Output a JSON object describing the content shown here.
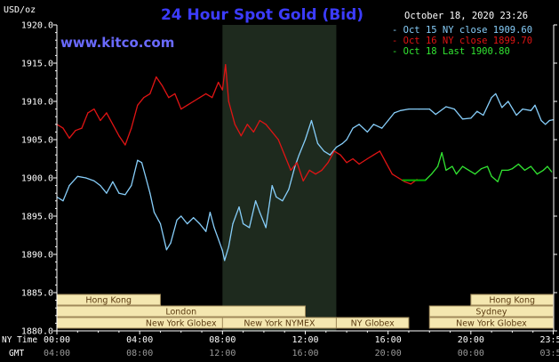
{
  "header": {
    "y_unit": "USD/oz",
    "title": "24 Hour Spot Gold (Bid)",
    "timestamp": "October 18, 2020 23:26",
    "watermark": "www.kitco.com"
  },
  "colors": {
    "background": "#000000",
    "axis": "#ffffff",
    "title": "#3c3cff",
    "watermark": "#6a6aff",
    "night_shade": "#1e2a1e",
    "oct15": "#87cefa",
    "oct16": "#e01414",
    "oct18": "#32e632",
    "oct18_flat": "#00b000",
    "session_bar": "#f4e7b0",
    "session_border": "#a08a5a",
    "session_text": "#5a3a10"
  },
  "sessions": [
    {
      "name": "Hong Kong",
      "start": "00:00",
      "end": "05:00",
      "row": 1
    },
    {
      "name": "London",
      "start": "00:00",
      "end": "12:00",
      "row": 2
    },
    {
      "name": "New York Globex",
      "start": "00:00",
      "end": "12:00",
      "row": 3
    },
    {
      "name": "New York NYMEX",
      "start": "08:00",
      "end": "13:30",
      "row": 3
    },
    {
      "name": "NY Globex",
      "start": "13:30",
      "end": "17:00",
      "row": 3
    },
    {
      "name": "Hong Kong",
      "start": "20:00",
      "end": "23:59",
      "row": 1
    },
    {
      "name": "Sydney",
      "start": "18:00",
      "end": "23:59",
      "row": 2
    },
    {
      "name": "New York Globex",
      "start": "18:00",
      "end": "23:59",
      "row": 3
    }
  ],
  "chart_data": {
    "type": "line",
    "title": "24 Hour Spot Gold (Bid)",
    "ylabel": "USD/oz",
    "ylim": [
      1880.0,
      1920.0
    ],
    "yticks": [
      "1920.0",
      "1915.0",
      "1910.0",
      "1905.0",
      "1900.0",
      "1895.0",
      "1890.0",
      "1885.0",
      "1880.0"
    ],
    "xlim_hours": [
      0,
      24
    ],
    "x_row_labels": [
      "NY Time",
      "GMT"
    ],
    "xticks_ny": [
      "00:00",
      "04:00",
      "08:00",
      "12:00",
      "16:00",
      "20:00",
      "23:59"
    ],
    "xticks_gmt": [
      "04:00",
      "08:00",
      "12:00",
      "16:00",
      "20:00",
      "00:00",
      "03:59"
    ],
    "shaded_region_hours": [
      8,
      13.5
    ],
    "grid": false,
    "legend_position": "top-right",
    "series": [
      {
        "name": "Oct 15 NY close 1909.60",
        "color_key": "oct15",
        "points": [
          [
            0,
            1897.5
          ],
          [
            0.3,
            1897.0
          ],
          [
            0.6,
            1899.0
          ],
          [
            1.0,
            1900.2
          ],
          [
            1.4,
            1900.0
          ],
          [
            1.8,
            1899.6
          ],
          [
            2.1,
            1899.0
          ],
          [
            2.4,
            1898.0
          ],
          [
            2.7,
            1899.5
          ],
          [
            3.0,
            1898.0
          ],
          [
            3.3,
            1897.8
          ],
          [
            3.6,
            1899.0
          ],
          [
            3.9,
            1902.3
          ],
          [
            4.1,
            1902.0
          ],
          [
            4.3,
            1900.0
          ],
          [
            4.5,
            1898.0
          ],
          [
            4.7,
            1895.5
          ],
          [
            5.0,
            1894.0
          ],
          [
            5.3,
            1890.6
          ],
          [
            5.5,
            1891.5
          ],
          [
            5.8,
            1894.5
          ],
          [
            6.0,
            1895.0
          ],
          [
            6.3,
            1894.0
          ],
          [
            6.6,
            1894.8
          ],
          [
            6.9,
            1894.0
          ],
          [
            7.2,
            1893.0
          ],
          [
            7.4,
            1895.5
          ],
          [
            7.6,
            1893.5
          ],
          [
            7.8,
            1892.0
          ],
          [
            8.0,
            1890.5
          ],
          [
            8.1,
            1889.2
          ],
          [
            8.3,
            1891.0
          ],
          [
            8.5,
            1894.0
          ],
          [
            8.8,
            1896.2
          ],
          [
            9.0,
            1894.0
          ],
          [
            9.3,
            1893.5
          ],
          [
            9.6,
            1897.0
          ],
          [
            9.8,
            1895.5
          ],
          [
            10.1,
            1893.5
          ],
          [
            10.4,
            1899.0
          ],
          [
            10.6,
            1897.5
          ],
          [
            10.9,
            1897.0
          ],
          [
            11.2,
            1898.5
          ],
          [
            11.5,
            1901.5
          ],
          [
            11.7,
            1903.0
          ],
          [
            12.0,
            1905.0
          ],
          [
            12.3,
            1907.5
          ],
          [
            12.6,
            1904.5
          ],
          [
            12.9,
            1903.5
          ],
          [
            13.2,
            1903.0
          ],
          [
            13.5,
            1904.0
          ],
          [
            13.8,
            1904.5
          ],
          [
            14.0,
            1905.0
          ],
          [
            14.3,
            1906.5
          ],
          [
            14.6,
            1907.0
          ],
          [
            15.0,
            1906.0
          ],
          [
            15.3,
            1907.0
          ],
          [
            15.7,
            1906.5
          ],
          [
            16.0,
            1907.5
          ],
          [
            16.3,
            1908.5
          ],
          [
            16.6,
            1908.8
          ],
          [
            17.0,
            1909.0
          ],
          [
            17.5,
            1909.0
          ],
          [
            18.0,
            1909.0
          ],
          [
            18.3,
            1908.3
          ],
          [
            18.8,
            1909.3
          ],
          [
            19.2,
            1909.0
          ],
          [
            19.6,
            1907.7
          ],
          [
            20.0,
            1907.8
          ],
          [
            20.3,
            1908.7
          ],
          [
            20.6,
            1908.2
          ],
          [
            21.0,
            1910.5
          ],
          [
            21.2,
            1911.0
          ],
          [
            21.5,
            1909.2
          ],
          [
            21.8,
            1910.0
          ],
          [
            22.2,
            1908.2
          ],
          [
            22.5,
            1909.0
          ],
          [
            22.9,
            1908.8
          ],
          [
            23.1,
            1909.5
          ],
          [
            23.4,
            1907.5
          ],
          [
            23.6,
            1907.0
          ],
          [
            23.8,
            1907.5
          ],
          [
            23.98,
            1907.6
          ]
        ]
      },
      {
        "name": "Oct 16 NY close 1899.70",
        "color_key": "oct16",
        "points": [
          [
            0,
            1907.0
          ],
          [
            0.3,
            1906.5
          ],
          [
            0.6,
            1905.2
          ],
          [
            0.9,
            1906.2
          ],
          [
            1.2,
            1906.5
          ],
          [
            1.5,
            1908.5
          ],
          [
            1.8,
            1909.0
          ],
          [
            2.1,
            1907.5
          ],
          [
            2.4,
            1908.5
          ],
          [
            2.7,
            1907.0
          ],
          [
            3.0,
            1905.5
          ],
          [
            3.3,
            1904.3
          ],
          [
            3.6,
            1906.5
          ],
          [
            3.9,
            1909.5
          ],
          [
            4.2,
            1910.5
          ],
          [
            4.5,
            1911.0
          ],
          [
            4.8,
            1913.2
          ],
          [
            5.1,
            1912.0
          ],
          [
            5.4,
            1910.5
          ],
          [
            5.7,
            1911.0
          ],
          [
            6.0,
            1909.0
          ],
          [
            6.3,
            1909.5
          ],
          [
            6.6,
            1910.0
          ],
          [
            6.9,
            1910.5
          ],
          [
            7.2,
            1911.0
          ],
          [
            7.5,
            1910.5
          ],
          [
            7.8,
            1912.5
          ],
          [
            8.0,
            1911.5
          ],
          [
            8.15,
            1914.8
          ],
          [
            8.3,
            1910.0
          ],
          [
            8.6,
            1907.0
          ],
          [
            8.9,
            1905.5
          ],
          [
            9.2,
            1907.0
          ],
          [
            9.5,
            1906.0
          ],
          [
            9.8,
            1907.5
          ],
          [
            10.1,
            1907.0
          ],
          [
            10.4,
            1906.0
          ],
          [
            10.7,
            1905.0
          ],
          [
            11.0,
            1903.0
          ],
          [
            11.3,
            1901.0
          ],
          [
            11.6,
            1902.0
          ],
          [
            11.9,
            1899.6
          ],
          [
            12.2,
            1901.0
          ],
          [
            12.5,
            1900.5
          ],
          [
            12.8,
            1901.0
          ],
          [
            13.1,
            1902.0
          ],
          [
            13.4,
            1903.5
          ],
          [
            13.7,
            1903.0
          ],
          [
            14.0,
            1902.0
          ],
          [
            14.3,
            1902.5
          ],
          [
            14.6,
            1901.8
          ],
          [
            15.0,
            1902.5
          ],
          [
            15.3,
            1903.0
          ],
          [
            15.6,
            1903.5
          ],
          [
            15.9,
            1902.0
          ],
          [
            16.2,
            1900.5
          ],
          [
            16.5,
            1900.0
          ],
          [
            16.8,
            1899.5
          ],
          [
            17.1,
            1899.2
          ],
          [
            17.4,
            1899.8
          ]
        ]
      },
      {
        "name": "Oct 18 Last 1900.80",
        "color_key": "oct18",
        "points": [
          [
            16.7,
            1899.7
          ],
          [
            17.8,
            1899.7
          ],
          [
            18.1,
            1900.5
          ],
          [
            18.4,
            1901.5
          ],
          [
            18.6,
            1903.3
          ],
          [
            18.8,
            1901.0
          ],
          [
            19.1,
            1901.5
          ],
          [
            19.3,
            1900.5
          ],
          [
            19.6,
            1901.5
          ],
          [
            19.9,
            1901.0
          ],
          [
            20.2,
            1900.5
          ],
          [
            20.5,
            1901.2
          ],
          [
            20.8,
            1901.5
          ],
          [
            21.0,
            1900.2
          ],
          [
            21.3,
            1899.5
          ],
          [
            21.5,
            1901.0
          ],
          [
            21.8,
            1901.0
          ],
          [
            22.0,
            1901.2
          ],
          [
            22.3,
            1901.8
          ],
          [
            22.6,
            1901.0
          ],
          [
            22.9,
            1901.5
          ],
          [
            23.2,
            1900.5
          ],
          [
            23.5,
            1901.0
          ],
          [
            23.7,
            1901.5
          ],
          [
            23.9,
            1900.8
          ]
        ]
      }
    ]
  }
}
